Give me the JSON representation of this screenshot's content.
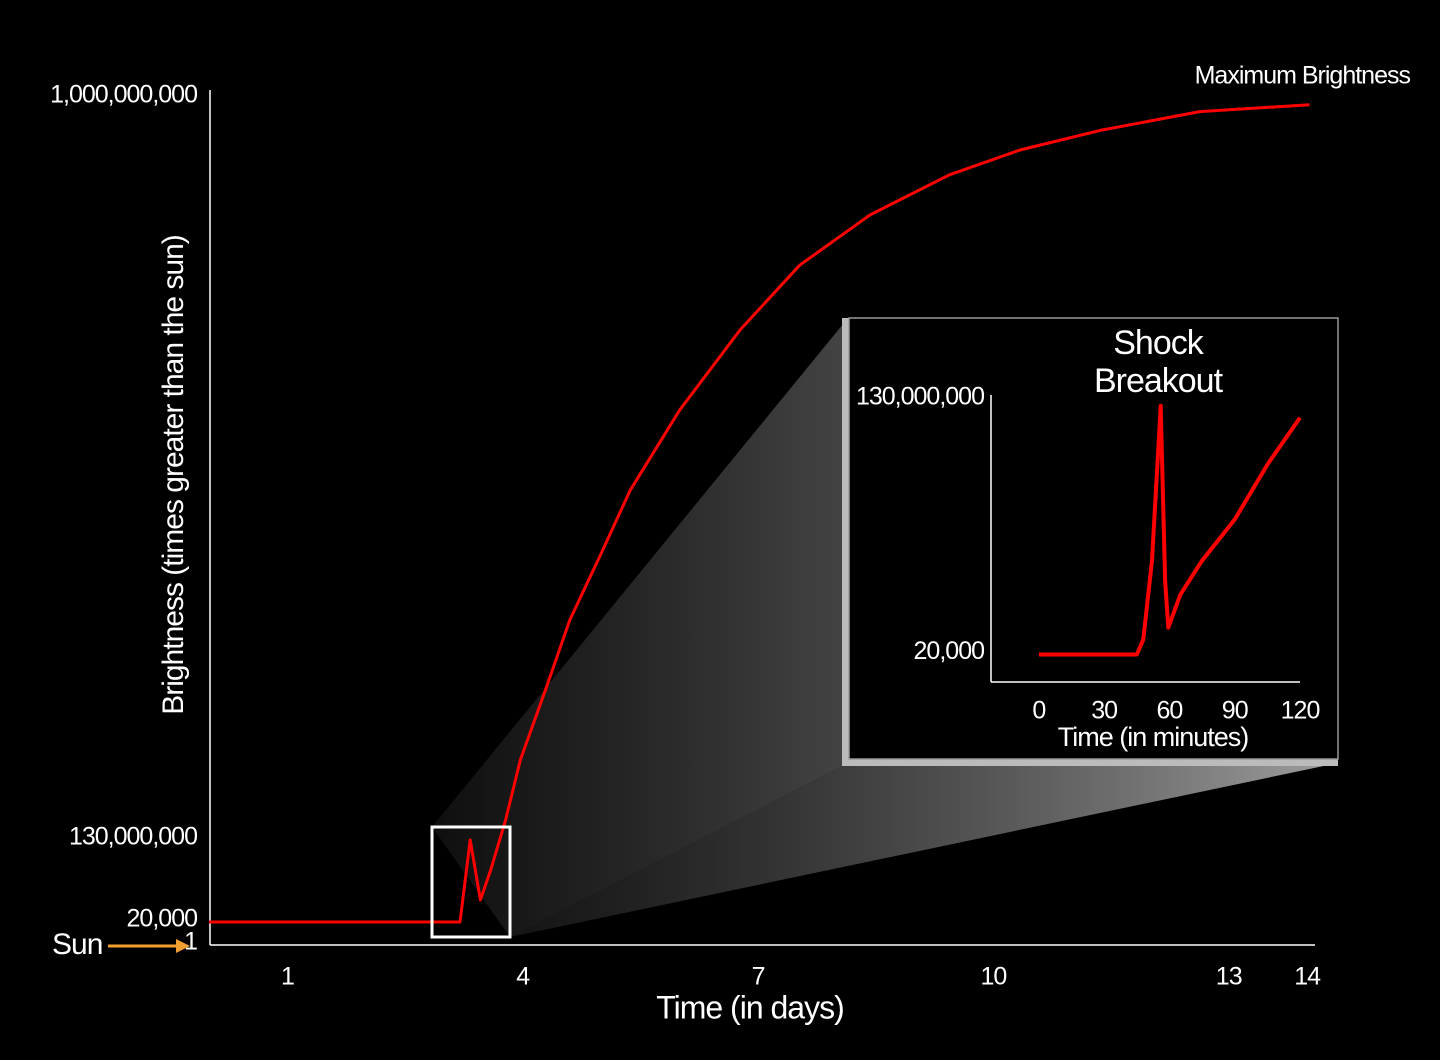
{
  "chart_data": [
    {
      "type": "line",
      "annotation": "Maximum Brightness",
      "xlabel": "Time (in days)",
      "ylabel": "Brightness  (times greater than the sun)",
      "sun_label": "Sun",
      "x": [
        0,
        0.5,
        1,
        1.5,
        2,
        2.5,
        3,
        3.2,
        3.33,
        3.46,
        3.59,
        3.78,
        3.97,
        4.29,
        4.6,
        4.99,
        5.37,
        6.0,
        6.77,
        7.53,
        8.43,
        9.44,
        10.34,
        11.36,
        12.63,
        14.03
      ],
      "values": [
        20000,
        20000,
        20000,
        20000,
        20000,
        20000,
        20000,
        20000,
        130000000,
        35000000,
        82000000,
        153000000,
        224000000,
        306000000,
        388000000,
        464000000,
        540000000,
        634000000,
        728000000,
        804000000,
        863000000,
        910000000,
        939000000,
        962000000,
        984000000,
        992000000
      ],
      "color": "#ff0000",
      "xlim": [
        0,
        14.1
      ],
      "xticks": [
        1,
        4,
        7,
        10,
        13,
        14
      ],
      "ylim": [
        1,
        1000000000
      ],
      "yticks": [
        1,
        {
          "value": 20000,
          "label": "20,000"
        },
        {
          "value": 130000000,
          "label": "130,000,000"
        },
        {
          "value": 1000000000,
          "label": "1,000,000,000"
        }
      ]
    },
    {
      "type": "line",
      "title": [
        "Shock",
        "Breakout"
      ],
      "xlabel": "Time (in minutes)",
      "x": [
        0,
        10,
        20,
        30,
        40,
        45,
        48,
        52,
        56,
        58,
        59.5,
        65,
        75,
        90,
        105,
        120
      ],
      "values": [
        20000,
        20000,
        20000,
        20000,
        20000,
        20000,
        7700000,
        48000000,
        127000000,
        38000000,
        13800000,
        30600000,
        48000000,
        69000000,
        97000000,
        121000000
      ],
      "color": "#ff0000",
      "xlim": [
        -22,
        120
      ],
      "xticks": [
        0,
        30,
        60,
        90,
        120
      ],
      "ylim": [
        -14000000,
        130000000
      ],
      "yticks": [
        {
          "value": 20000,
          "label": "20,000"
        },
        {
          "value": 130000000,
          "label": "130,000,000"
        }
      ]
    }
  ]
}
